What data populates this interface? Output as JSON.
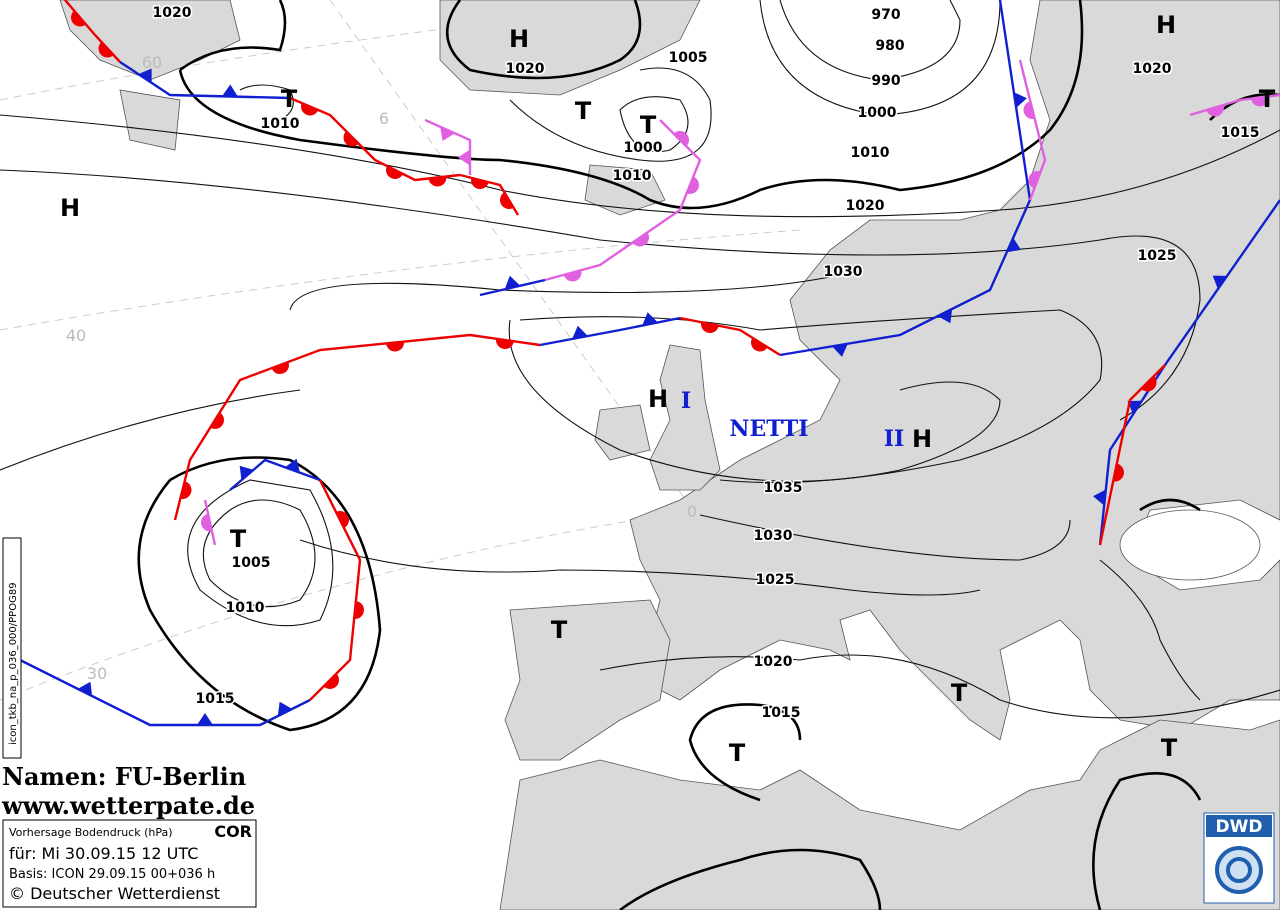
{
  "isobar_labels": [
    "1020",
    "1020",
    "1005",
    "970",
    "980",
    "990",
    "1000",
    "1010",
    "1000",
    "1010",
    "1010",
    "1020",
    "1020",
    "1015",
    "1030",
    "1025",
    "1035",
    "1030",
    "1025",
    "1020",
    "1015",
    "1005",
    "1010",
    "1015"
  ],
  "centers": [
    "H",
    "H",
    "T",
    "T",
    "T",
    "H",
    "H",
    "H",
    "T",
    "T",
    "T",
    "T",
    "T",
    "T"
  ],
  "grid_labels": [
    "60",
    "6",
    "40",
    "30",
    "0"
  ],
  "names": {
    "storm": "NETTI",
    "high_1": "I",
    "high_2": "II"
  },
  "credit": {
    "names": "Namen: FU-Berlin",
    "site": "www.wetterpate.de"
  },
  "info_box": {
    "title": "Vorhersage Bodendruck (hPa)",
    "flag": "COR",
    "valid": "für:  Mi 30.09.15  12 UTC",
    "basis": "Basis: ICON  29.09.15 00+036 h",
    "copyright": "© Deutscher Wetterdienst"
  },
  "logo": "DWD",
  "product_id": "icon_tkb_na_p_036_000/PPOG89"
}
